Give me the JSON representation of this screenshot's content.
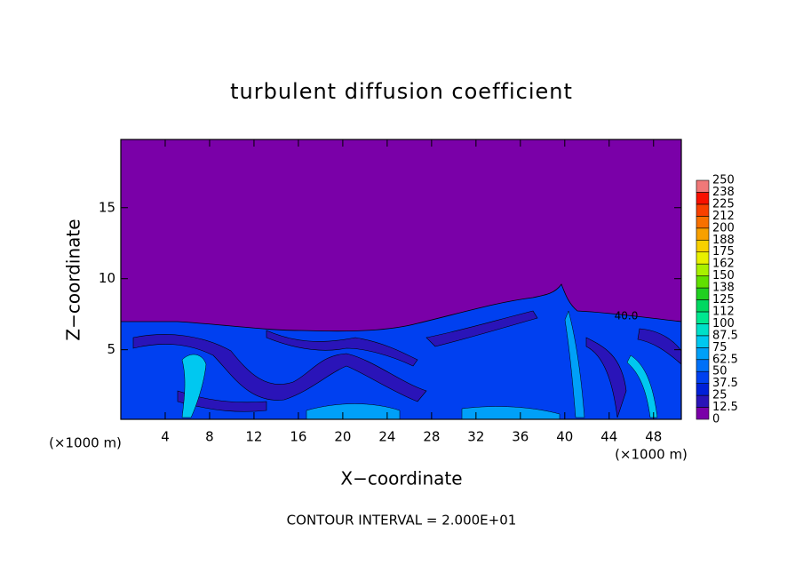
{
  "chart_data": {
    "type": "contour",
    "title": "turbulent diffusion coefficient",
    "xlabel": "X−coordinate",
    "ylabel": "Z−coordinate",
    "x_unit": "(×1000 m)",
    "footer": "CONTOUR INTERVAL = 2.000E+01",
    "annotations": [
      "40.0"
    ],
    "xlim": [
      0,
      50.5
    ],
    "ylim": [
      0.1,
      19.8
    ],
    "xticks": [
      4,
      8,
      12,
      16,
      20,
      24,
      28,
      32,
      36,
      40,
      44,
      48
    ],
    "yticks": [
      5,
      10,
      15
    ],
    "colorbar": {
      "levels": [
        0,
        12.5,
        25,
        37.5,
        50,
        62.5,
        75,
        87.5,
        100,
        {
          "value": 112.5,
          "label": "112"
        },
        125,
        {
          "value": 137.5,
          "label": "138"
        },
        150,
        {
          "value": 162.5,
          "label": "162"
        },
        175,
        {
          "value": 187.5,
          "label": "188"
        },
        200,
        {
          "value": 212.5,
          "label": "212"
        },
        225,
        {
          "value": 237.5,
          "label": "238"
        },
        250
      ],
      "colors": [
        "#7a00a8",
        "#2a14b8",
        "#0020d8",
        "#0040f0",
        "#0070f8",
        "#00a0f8",
        "#00c8f0",
        "#00e0c8",
        "#00e890",
        "#00d860",
        "#20d020",
        "#60e000",
        "#a8f000",
        "#e8f000",
        "#f8d000",
        "#f8a000",
        "#f87000",
        "#f84000",
        "#f81000",
        "#f07878"
      ]
    }
  }
}
